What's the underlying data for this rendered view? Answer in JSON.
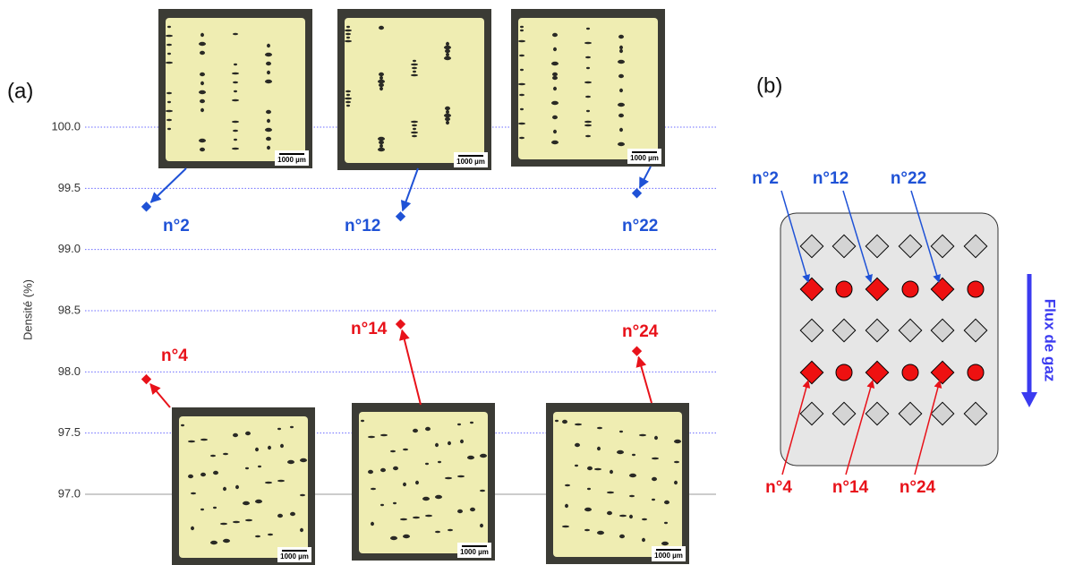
{
  "chart_data": {
    "type": "scatter",
    "panel_labels": [
      "(a)",
      "(b)"
    ],
    "y_label": "Densité (%)",
    "categories": [
      null,
      null,
      null
    ],
    "series": [
      {
        "color": "#1f52d6",
        "labels": [
          "n°2",
          "n°12",
          "n°22"
        ],
        "values": [
          99.35,
          99.27,
          99.46
        ]
      },
      {
        "color": "#e8121a",
        "labels": [
          "n°4",
          "n°14",
          "n°24"
        ],
        "values": [
          97.94,
          98.39,
          98.17
        ]
      }
    ],
    "ylim": [
      97,
      100
    ],
    "yticks": [
      {
        "value": 97,
        "label": "97.0"
      },
      {
        "value": 97.5,
        "label": "97.5"
      },
      {
        "value": 98,
        "label": "98.0"
      },
      {
        "value": 98.5,
        "label": "98.5"
      },
      {
        "value": 99,
        "label": "99.0"
      },
      {
        "value": 99.5,
        "label": "99.5"
      },
      {
        "value": 100,
        "label": "100.0"
      }
    ],
    "grid": true,
    "scale_bar_label": "1000 µm",
    "diagram": {
      "top_labels": [
        "n°2",
        "n°12",
        "n°22"
      ],
      "bottom_labels": [
        "n°4",
        "n°14",
        "n°24"
      ],
      "flow_label": "Flux de gaz"
    }
  }
}
